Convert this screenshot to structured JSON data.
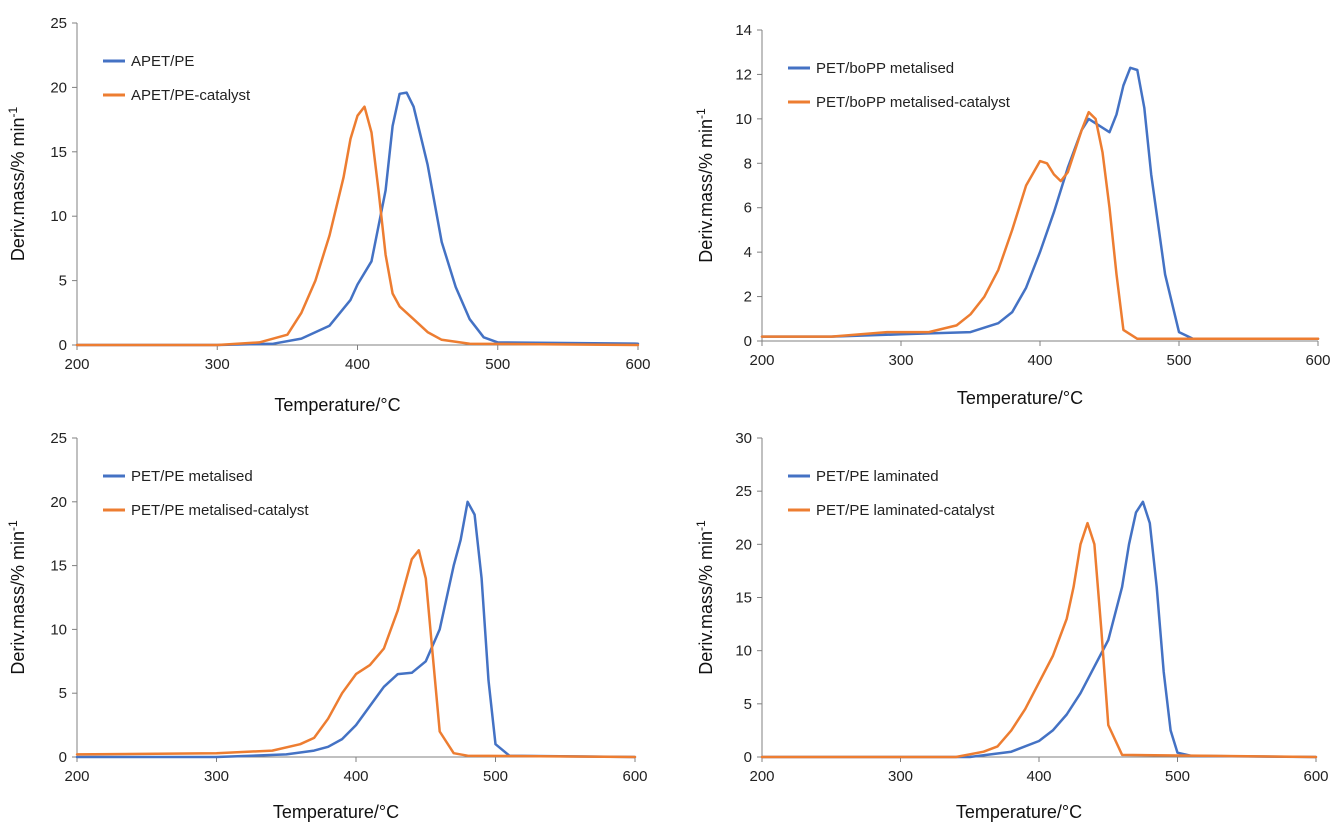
{
  "colors": {
    "series_a": "#4472c4",
    "series_b": "#ed7d31",
    "axis": "#808080"
  },
  "chart_data": [
    {
      "type": "line",
      "xlabel": "Temperature/°C",
      "ylabel": "Deriv.mass/% min",
      "ylabel_sup": "-1",
      "xlim": [
        200,
        600
      ],
      "ylim": [
        0,
        25
      ],
      "xticks": [
        "200",
        "300",
        "400",
        "500",
        "600"
      ],
      "yticks": [
        "0",
        "5",
        "10",
        "15",
        "20",
        "25"
      ],
      "grid": false,
      "legend_position": "top-left",
      "series": [
        {
          "name": "APET/PE",
          "x": [
            200,
            300,
            340,
            360,
            380,
            395,
            400,
            410,
            420,
            425,
            430,
            435,
            440,
            450,
            460,
            470,
            480,
            490,
            500,
            600
          ],
          "y": [
            0,
            0,
            0.1,
            0.5,
            1.5,
            3.5,
            4.7,
            6.5,
            12,
            17,
            19.5,
            19.6,
            18.5,
            14,
            8,
            4.5,
            2,
            0.6,
            0.2,
            0.1
          ]
        },
        {
          "name": "APET/PE-catalyst",
          "x": [
            200,
            300,
            330,
            350,
            360,
            370,
            380,
            390,
            395,
            400,
            405,
            410,
            415,
            420,
            425,
            430,
            440,
            450,
            460,
            480,
            600
          ],
          "y": [
            0,
            0,
            0.2,
            0.8,
            2.5,
            5,
            8.5,
            13,
            16,
            17.8,
            18.5,
            16.5,
            12,
            7,
            4,
            3,
            2,
            1,
            0.4,
            0.1,
            0
          ]
        }
      ]
    },
    {
      "type": "line",
      "xlabel": "Temperature/°C",
      "ylabel": "Deriv.mass/% min",
      "ylabel_sup": "-1",
      "xlim": [
        200,
        600
      ],
      "ylim": [
        0,
        14
      ],
      "xticks": [
        "200",
        "300",
        "400",
        "500",
        "600"
      ],
      "yticks": [
        "0",
        "2",
        "4",
        "6",
        "8",
        "10",
        "12",
        "14"
      ],
      "grid": false,
      "legend_position": "top-left",
      "series": [
        {
          "name": "PET/boPP metalised",
          "x": [
            200,
            250,
            300,
            350,
            370,
            380,
            390,
            400,
            410,
            420,
            430,
            435,
            440,
            450,
            455,
            460,
            465,
            470,
            475,
            480,
            490,
            500,
            510,
            600
          ],
          "y": [
            0.2,
            0.2,
            0.3,
            0.4,
            0.8,
            1.3,
            2.4,
            4,
            5.8,
            7.8,
            9.5,
            10,
            9.8,
            9.4,
            10.2,
            11.5,
            12.3,
            12.2,
            10.5,
            7.5,
            3,
            0.4,
            0.1,
            0.1
          ]
        },
        {
          "name": "PET/boPP metalised-catalyst",
          "x": [
            200,
            250,
            290,
            320,
            340,
            350,
            360,
            370,
            380,
            390,
            400,
            405,
            410,
            415,
            420,
            430,
            435,
            440,
            445,
            450,
            455,
            460,
            470,
            600
          ],
          "y": [
            0.2,
            0.2,
            0.4,
            0.4,
            0.7,
            1.2,
            2,
            3.2,
            5,
            7,
            8.1,
            8,
            7.5,
            7.2,
            7.6,
            9.5,
            10.3,
            10,
            8.5,
            6,
            3,
            0.5,
            0.1,
            0.1
          ]
        }
      ]
    },
    {
      "type": "line",
      "xlabel": "Temperature/°C",
      "ylabel": "Deriv.mass/% min",
      "ylabel_sup": "-1",
      "xlim": [
        200,
        600
      ],
      "ylim": [
        0,
        25
      ],
      "xticks": [
        "200",
        "300",
        "400",
        "500",
        "600"
      ],
      "yticks": [
        "0",
        "5",
        "10",
        "15",
        "20",
        "25"
      ],
      "grid": false,
      "legend_position": "top-left",
      "series": [
        {
          "name": "PET/PE metalised",
          "x": [
            200,
            300,
            350,
            370,
            380,
            390,
            400,
            410,
            420,
            430,
            440,
            450,
            460,
            470,
            475,
            480,
            485,
            490,
            495,
            500,
            510,
            600
          ],
          "y": [
            0,
            0,
            0.2,
            0.5,
            0.8,
            1.4,
            2.5,
            4,
            5.5,
            6.5,
            6.6,
            7.5,
            10,
            15,
            17,
            20,
            19,
            14,
            6,
            1,
            0.1,
            0
          ]
        },
        {
          "name": "PET/PE metalised-catalyst",
          "x": [
            200,
            300,
            340,
            360,
            370,
            380,
            390,
            400,
            410,
            420,
            430,
            440,
            445,
            450,
            455,
            460,
            470,
            480,
            600
          ],
          "y": [
            0.2,
            0.3,
            0.5,
            1,
            1.5,
            3,
            5,
            6.5,
            7.2,
            8.5,
            11.5,
            15.5,
            16.2,
            14,
            8,
            2,
            0.3,
            0.1,
            0
          ]
        }
      ]
    },
    {
      "type": "line",
      "xlabel": "Temperature/°C",
      "ylabel": "Deriv.mass/% min",
      "ylabel_sup": "-1",
      "xlim": [
        200,
        600
      ],
      "ylim": [
        0,
        30
      ],
      "xticks": [
        "200",
        "300",
        "400",
        "500",
        "600"
      ],
      "yticks": [
        "0",
        "5",
        "10",
        "15",
        "20",
        "25",
        "30"
      ],
      "grid": false,
      "legend_position": "top-left",
      "series": [
        {
          "name": "PET/PE laminated",
          "x": [
            200,
            350,
            380,
            400,
            410,
            420,
            430,
            440,
            450,
            460,
            465,
            470,
            475,
            480,
            485,
            490,
            495,
            500,
            510,
            600
          ],
          "y": [
            0,
            0,
            0.5,
            1.5,
            2.5,
            4,
            6,
            8.5,
            11,
            16,
            20,
            23,
            24,
            22,
            16,
            8,
            2.5,
            0.4,
            0.1,
            0
          ]
        },
        {
          "name": "PET/PE laminated-catalyst",
          "x": [
            200,
            340,
            360,
            370,
            380,
            390,
            400,
            410,
            420,
            425,
            430,
            435,
            440,
            445,
            450,
            460,
            600
          ],
          "y": [
            0,
            0,
            0.5,
            1,
            2.5,
            4.5,
            7,
            9.5,
            13,
            16,
            20,
            22,
            20,
            12,
            3,
            0.2,
            0
          ]
        }
      ]
    }
  ]
}
